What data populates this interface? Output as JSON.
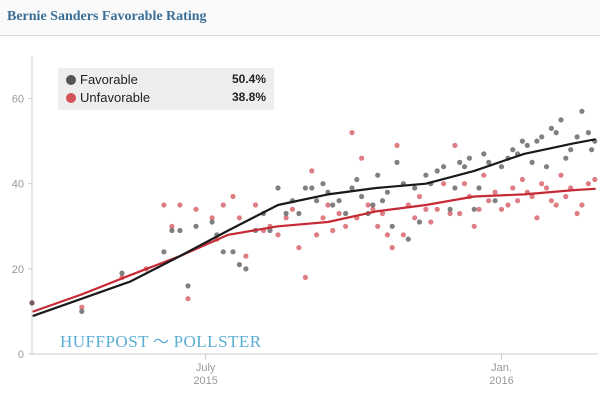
{
  "header": {
    "title": "Bernie Sanders Favorable Rating"
  },
  "legend": {
    "items": [
      {
        "label": "Favorable",
        "value": "50.4%",
        "color": "#555555"
      },
      {
        "label": "Unfavorable",
        "value": "38.8%",
        "color": "#d3535b"
      }
    ]
  },
  "watermark": {
    "left": "HUFFPOST",
    "right": "POLLSTER",
    "icon": "bird-icon"
  },
  "chart_data": {
    "type": "scatter",
    "title": "Bernie Sanders Favorable Rating",
    "xlabel": "",
    "ylabel": "",
    "x_range": [
      "2015-03-15",
      "2016-03-01"
    ],
    "ylim": [
      0,
      70
    ],
    "yticks": [
      0,
      20,
      40,
      60
    ],
    "xticks": [
      {
        "date": "2015-07-01",
        "label": [
          "July",
          "2015"
        ]
      },
      {
        "date": "2016-01-01",
        "label": [
          "Jan.",
          "2016"
        ]
      }
    ],
    "grid": {
      "x": false,
      "y": false
    },
    "legend_position": "top-left",
    "series": [
      {
        "name": "Favorable",
        "color": "#555555",
        "trend": [
          [
            "2015-03-16",
            9
          ],
          [
            "2015-04-15",
            13
          ],
          [
            "2015-05-15",
            17
          ],
          [
            "2015-06-15",
            23
          ],
          [
            "2015-07-15",
            29
          ],
          [
            "2015-08-15",
            35
          ],
          [
            "2015-09-15",
            37.5
          ],
          [
            "2015-10-15",
            39
          ],
          [
            "2015-11-15",
            40
          ],
          [
            "2015-12-15",
            43
          ],
          [
            "2016-01-15",
            47
          ],
          [
            "2016-02-15",
            49.5
          ],
          [
            "2016-02-28",
            50.4
          ]
        ],
        "points": [
          [
            "2015-03-15",
            12
          ],
          [
            "2015-04-15",
            10
          ],
          [
            "2015-05-10",
            19
          ],
          [
            "2015-06-05",
            24
          ],
          [
            "2015-06-10",
            29
          ],
          [
            "2015-06-15",
            29
          ],
          [
            "2015-06-20",
            16
          ],
          [
            "2015-06-25",
            30
          ],
          [
            "2015-07-05",
            31
          ],
          [
            "2015-07-08",
            28
          ],
          [
            "2015-07-12",
            24
          ],
          [
            "2015-07-18",
            24
          ],
          [
            "2015-07-22",
            21
          ],
          [
            "2015-07-26",
            20
          ],
          [
            "2015-08-01",
            29
          ],
          [
            "2015-08-06",
            33
          ],
          [
            "2015-08-10",
            29
          ],
          [
            "2015-08-15",
            39
          ],
          [
            "2015-08-20",
            33
          ],
          [
            "2015-08-24",
            36
          ],
          [
            "2015-08-28",
            33
          ],
          [
            "2015-09-01",
            39
          ],
          [
            "2015-09-05",
            39
          ],
          [
            "2015-09-08",
            36
          ],
          [
            "2015-09-12",
            40
          ],
          [
            "2015-09-15",
            38
          ],
          [
            "2015-09-18",
            35
          ],
          [
            "2015-09-22",
            36
          ],
          [
            "2015-09-26",
            33
          ],
          [
            "2015-09-30",
            39
          ],
          [
            "2015-10-03",
            41
          ],
          [
            "2015-10-06",
            37
          ],
          [
            "2015-10-10",
            33
          ],
          [
            "2015-10-13",
            35
          ],
          [
            "2015-10-16",
            42
          ],
          [
            "2015-10-19",
            36
          ],
          [
            "2015-10-22",
            38
          ],
          [
            "2015-10-25",
            30
          ],
          [
            "2015-10-28",
            45
          ],
          [
            "2015-11-01",
            40
          ],
          [
            "2015-11-04",
            27
          ],
          [
            "2015-11-08",
            39
          ],
          [
            "2015-11-11",
            31
          ],
          [
            "2015-11-15",
            42
          ],
          [
            "2015-11-18",
            40
          ],
          [
            "2015-11-22",
            43
          ],
          [
            "2015-11-26",
            44
          ],
          [
            "2015-11-30",
            34
          ],
          [
            "2015-12-03",
            39
          ],
          [
            "2015-12-06",
            45
          ],
          [
            "2015-12-09",
            44
          ],
          [
            "2015-12-12",
            46
          ],
          [
            "2015-12-15",
            34
          ],
          [
            "2015-12-18",
            39
          ],
          [
            "2015-12-21",
            47
          ],
          [
            "2015-12-24",
            45
          ],
          [
            "2015-12-28",
            36
          ],
          [
            "2016-01-01",
            44
          ],
          [
            "2016-01-05",
            46
          ],
          [
            "2016-01-08",
            48
          ],
          [
            "2016-01-11",
            47
          ],
          [
            "2016-01-14",
            50
          ],
          [
            "2016-01-17",
            49
          ],
          [
            "2016-01-20",
            45
          ],
          [
            "2016-01-23",
            50
          ],
          [
            "2016-01-26",
            51
          ],
          [
            "2016-01-29",
            44
          ],
          [
            "2016-02-01",
            53
          ],
          [
            "2016-02-04",
            52
          ],
          [
            "2016-02-07",
            55
          ],
          [
            "2016-02-10",
            46
          ],
          [
            "2016-02-13",
            48
          ],
          [
            "2016-02-17",
            51
          ],
          [
            "2016-02-20",
            57
          ],
          [
            "2016-02-24",
            52
          ],
          [
            "2016-02-26",
            48
          ],
          [
            "2016-02-28",
            50
          ]
        ]
      },
      {
        "name": "Unfavorable",
        "color": "#d3535b",
        "trend": [
          [
            "2015-03-16",
            10
          ],
          [
            "2015-04-15",
            14
          ],
          [
            "2015-05-15",
            18.5
          ],
          [
            "2015-06-15",
            23
          ],
          [
            "2015-07-15",
            28
          ],
          [
            "2015-08-15",
            30
          ],
          [
            "2015-09-15",
            31
          ],
          [
            "2015-10-15",
            33.5
          ],
          [
            "2015-11-15",
            35
          ],
          [
            "2015-12-15",
            37
          ],
          [
            "2016-01-15",
            37.5
          ],
          [
            "2016-02-15",
            38.5
          ],
          [
            "2016-02-28",
            38.8
          ]
        ],
        "points": [
          [
            "2015-03-15",
            12
          ],
          [
            "2015-04-15",
            11
          ],
          [
            "2015-05-10",
            18
          ],
          [
            "2015-05-25",
            20
          ],
          [
            "2015-06-05",
            35
          ],
          [
            "2015-06-10",
            30
          ],
          [
            "2015-06-15",
            35
          ],
          [
            "2015-06-20",
            13
          ],
          [
            "2015-06-25",
            34
          ],
          [
            "2015-07-05",
            32
          ],
          [
            "2015-07-08",
            27
          ],
          [
            "2015-07-12",
            35
          ],
          [
            "2015-07-18",
            37
          ],
          [
            "2015-07-22",
            32
          ],
          [
            "2015-07-26",
            23
          ],
          [
            "2015-08-01",
            35
          ],
          [
            "2015-08-06",
            29
          ],
          [
            "2015-08-10",
            30
          ],
          [
            "2015-08-15",
            28
          ],
          [
            "2015-08-20",
            32
          ],
          [
            "2015-08-24",
            34
          ],
          [
            "2015-08-28",
            25
          ],
          [
            "2015-09-01",
            18
          ],
          [
            "2015-09-05",
            43
          ],
          [
            "2015-09-08",
            28
          ],
          [
            "2015-09-12",
            32
          ],
          [
            "2015-09-15",
            35
          ],
          [
            "2015-09-18",
            29
          ],
          [
            "2015-09-22",
            33
          ],
          [
            "2015-09-26",
            30
          ],
          [
            "2015-09-30",
            52
          ],
          [
            "2015-10-03",
            32
          ],
          [
            "2015-10-06",
            46
          ],
          [
            "2015-10-10",
            35
          ],
          [
            "2015-10-13",
            34
          ],
          [
            "2015-10-16",
            30
          ],
          [
            "2015-10-19",
            33
          ],
          [
            "2015-10-22",
            28
          ],
          [
            "2015-10-25",
            25
          ],
          [
            "2015-10-28",
            49
          ],
          [
            "2015-11-01",
            28
          ],
          [
            "2015-11-04",
            35
          ],
          [
            "2015-11-08",
            32
          ],
          [
            "2015-11-11",
            37
          ],
          [
            "2015-11-15",
            34
          ],
          [
            "2015-11-18",
            31
          ],
          [
            "2015-11-22",
            34
          ],
          [
            "2015-11-26",
            40
          ],
          [
            "2015-11-30",
            33
          ],
          [
            "2015-12-03",
            49
          ],
          [
            "2015-12-06",
            33
          ],
          [
            "2015-12-09",
            40
          ],
          [
            "2015-12-12",
            37
          ],
          [
            "2015-12-15",
            30
          ],
          [
            "2015-12-18",
            34
          ],
          [
            "2015-12-21",
            42
          ],
          [
            "2015-12-24",
            36
          ],
          [
            "2015-12-28",
            38
          ],
          [
            "2016-01-01",
            34
          ],
          [
            "2016-01-05",
            35
          ],
          [
            "2016-01-08",
            39
          ],
          [
            "2016-01-11",
            36
          ],
          [
            "2016-01-14",
            41
          ],
          [
            "2016-01-17",
            38
          ],
          [
            "2016-01-20",
            37
          ],
          [
            "2016-01-23",
            32
          ],
          [
            "2016-01-26",
            40
          ],
          [
            "2016-01-29",
            39
          ],
          [
            "2016-02-01",
            36
          ],
          [
            "2016-02-04",
            35
          ],
          [
            "2016-02-07",
            42
          ],
          [
            "2016-02-10",
            37
          ],
          [
            "2016-02-13",
            39
          ],
          [
            "2016-02-17",
            33
          ],
          [
            "2016-02-20",
            35
          ],
          [
            "2016-02-24",
            40
          ],
          [
            "2016-02-28",
            41
          ]
        ]
      }
    ]
  }
}
